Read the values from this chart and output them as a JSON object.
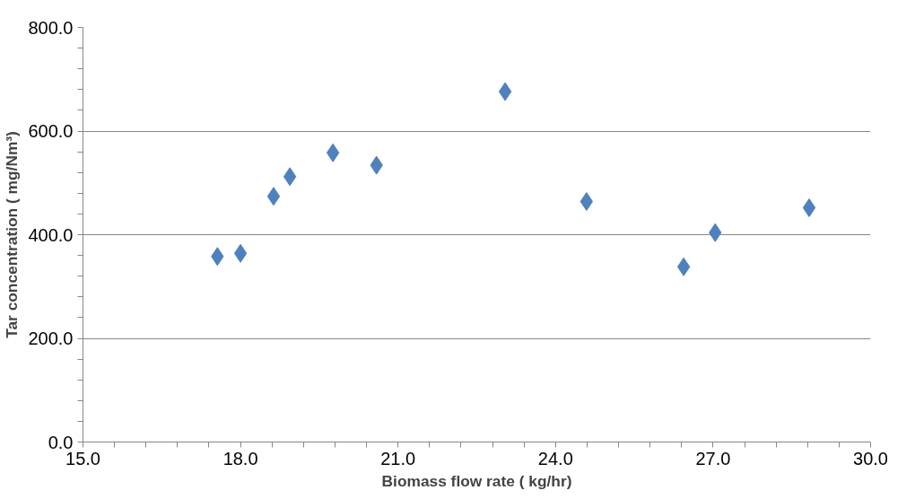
{
  "chart_data": {
    "type": "scatter",
    "xlabel": "Biomass flow rate ( kg/hr)",
    "ylabel": "Tar concentration ( mg/Nm³)",
    "x": [
      17.56,
      18.0,
      18.63,
      18.94,
      19.76,
      20.59,
      23.04,
      24.59,
      26.44,
      27.04,
      28.83
    ],
    "series": [
      {
        "color": "#4f81bd",
        "values": [
          358,
          364,
          474,
          512,
          558,
          534,
          676,
          464,
          338,
          404,
          452
        ]
      }
    ],
    "xlim": [
      15,
      30
    ],
    "ylim": [
      0,
      800
    ],
    "xticks": [
      {
        "value": 15,
        "label": "15.0"
      },
      {
        "value": 15.6,
        "label": null
      },
      {
        "value": 16.2,
        "label": null
      },
      {
        "value": 16.8,
        "label": null
      },
      {
        "value": 17.4,
        "label": null
      },
      {
        "value": 18,
        "label": "18.0"
      },
      {
        "value": 18.6,
        "label": null
      },
      {
        "value": 19.2,
        "label": null
      },
      {
        "value": 19.8,
        "label": null
      },
      {
        "value": 20.4,
        "label": null
      },
      {
        "value": 21,
        "label": "21.0"
      },
      {
        "value": 21.6,
        "label": null
      },
      {
        "value": 22.2,
        "label": null
      },
      {
        "value": 22.8,
        "label": null
      },
      {
        "value": 23.4,
        "label": null
      },
      {
        "value": 24,
        "label": "24.0"
      },
      {
        "value": 24.6,
        "label": null
      },
      {
        "value": 25.2,
        "label": null
      },
      {
        "value": 25.8,
        "label": null
      },
      {
        "value": 26.4,
        "label": null
      },
      {
        "value": 27,
        "label": "27.0"
      },
      {
        "value": 27.6,
        "label": null
      },
      {
        "value": 28.2,
        "label": null
      },
      {
        "value": 28.8,
        "label": null
      },
      {
        "value": 29.4,
        "label": null
      },
      {
        "value": 30,
        "label": "30.0"
      }
    ],
    "yticks": [
      {
        "value": 0,
        "label": "0.0"
      },
      {
        "value": 40,
        "label": null
      },
      {
        "value": 80,
        "label": null
      },
      {
        "value": 120,
        "label": null
      },
      {
        "value": 160,
        "label": null
      },
      {
        "value": 200,
        "label": "200.0"
      },
      {
        "value": 240,
        "label": null
      },
      {
        "value": 280,
        "label": null
      },
      {
        "value": 320,
        "label": null
      },
      {
        "value": 360,
        "label": null
      },
      {
        "value": 400,
        "label": "400.0"
      },
      {
        "value": 440,
        "label": null
      },
      {
        "value": 480,
        "label": null
      },
      {
        "value": 520,
        "label": null
      },
      {
        "value": 560,
        "label": null
      },
      {
        "value": 600,
        "label": "600.0"
      },
      {
        "value": 640,
        "label": null
      },
      {
        "value": 680,
        "label": null
      },
      {
        "value": 720,
        "label": null
      },
      {
        "value": 760,
        "label": null
      },
      {
        "value": 800,
        "label": "800.0"
      }
    ],
    "grid": "y",
    "marker": "diamond"
  }
}
